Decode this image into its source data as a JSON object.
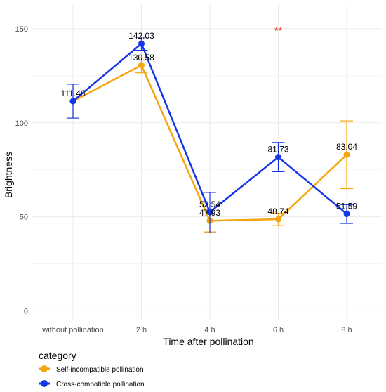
{
  "chart_data": {
    "type": "line",
    "categories": [
      "without pollination",
      "2 h",
      "4 h",
      "6 h",
      "8 h"
    ],
    "xlabel": "Time after pollination",
    "ylabel": "Brightness",
    "ylim": [
      -5,
      163
    ],
    "yticks": [
      0,
      50,
      100,
      150
    ],
    "grid": true,
    "legend_title": "category",
    "legend_position": "bottom-left",
    "series": [
      {
        "name": "Self-incompatible pollination",
        "color": "#f5a50f",
        "values": [
          111.48,
          130.58,
          47.93,
          48.74,
          83.04
        ],
        "labels": [
          "",
          "130.58",
          "47.93",
          "48.74",
          "83.04"
        ],
        "error_low": [
          102.5,
          126.5,
          42.0,
          45.3,
          65.0
        ],
        "error_high": [
          120.5,
          134.5,
          53.0,
          52.0,
          101.0
        ]
      },
      {
        "name": "Cross-compatible pollination",
        "color": "#1536e8",
        "values": [
          111.48,
          142.03,
          52.54,
          81.73,
          51.59
        ],
        "labels": [
          "111.48",
          "142.03",
          "52.54",
          "81.73",
          "51.59"
        ],
        "error_low": [
          102.5,
          138.5,
          41.5,
          74.0,
          46.5
        ],
        "error_high": [
          120.5,
          145.5,
          63.0,
          89.5,
          56.5
        ]
      }
    ],
    "annotations": [
      {
        "text": "**",
        "category": "6 h",
        "y": 149,
        "color": "#e8352a"
      }
    ]
  }
}
